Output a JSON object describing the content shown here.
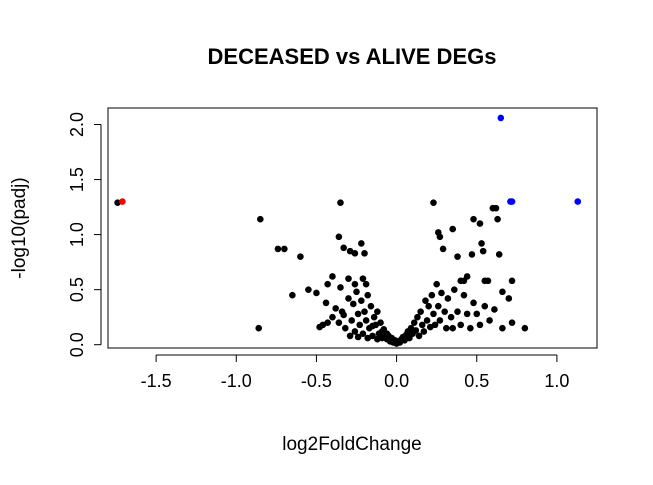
{
  "chart_data": {
    "type": "scatter",
    "title": "DECEASED vs ALIVE DEGs",
    "xlabel": "log2FoldChange",
    "ylabel": "-log10(padj)",
    "xlim": [
      -1.8,
      1.25
    ],
    "ylim": [
      -0.03,
      2.15
    ],
    "xticks": [
      -1.5,
      -1.0,
      -0.5,
      0.0,
      0.5,
      1.0
    ],
    "xtick_labels": [
      "-1.5",
      "-1.0",
      "-0.5",
      "0.0",
      "0.5",
      "1.0"
    ],
    "yticks": [
      0.0,
      0.5,
      1.0,
      1.5,
      2.0
    ],
    "ytick_labels": [
      "0.0",
      "0.5",
      "1.0",
      "1.5",
      "2.0"
    ],
    "grid": false,
    "colors": {
      "base": "#000000",
      "down": "#ff0000",
      "up": "#0000ff"
    },
    "series": [
      {
        "color": "#000000",
        "points": [
          [
            -1.74,
            1.29
          ],
          [
            -0.85,
            1.14
          ],
          [
            -0.74,
            0.87
          ],
          [
            -0.7,
            0.87
          ],
          [
            -0.6,
            0.8
          ],
          [
            -0.35,
            1.29
          ],
          [
            -0.36,
            0.98
          ],
          [
            -0.33,
            0.88
          ],
          [
            -0.29,
            0.85
          ],
          [
            -0.26,
            0.83
          ],
          [
            -0.2,
            0.83
          ],
          [
            -0.22,
            0.92
          ],
          [
            -0.65,
            0.45
          ],
          [
            -0.55,
            0.5
          ],
          [
            -0.5,
            0.47
          ],
          [
            -0.43,
            0.55
          ],
          [
            -0.4,
            0.62
          ],
          [
            -0.35,
            0.52
          ],
          [
            -0.3,
            0.6
          ],
          [
            -0.26,
            0.55
          ],
          [
            -0.21,
            0.6
          ],
          [
            -0.19,
            0.55
          ],
          [
            -0.86,
            0.15
          ],
          [
            -0.48,
            0.16
          ],
          [
            -0.46,
            0.18
          ],
          [
            -0.43,
            0.2
          ],
          [
            -0.4,
            0.25
          ],
          [
            -0.38,
            0.33
          ],
          [
            -0.36,
            0.2
          ],
          [
            -0.34,
            0.3
          ],
          [
            -0.32,
            0.15
          ],
          [
            -0.3,
            0.42
          ],
          [
            -0.28,
            0.22
          ],
          [
            -0.27,
            0.37
          ],
          [
            -0.26,
            0.12
          ],
          [
            -0.25,
            0.48
          ],
          [
            -0.24,
            0.28
          ],
          [
            -0.23,
            0.18
          ],
          [
            -0.22,
            0.4
          ],
          [
            -0.21,
            0.1
          ],
          [
            -0.2,
            0.3
          ],
          [
            -0.19,
            0.22
          ],
          [
            -0.18,
            0.45
          ],
          [
            -0.17,
            0.15
          ],
          [
            -0.16,
            0.35
          ],
          [
            -0.15,
            0.08
          ],
          [
            -0.14,
            0.25
          ],
          [
            -0.13,
            0.18
          ],
          [
            -0.12,
            0.3
          ],
          [
            -0.11,
            0.1
          ],
          [
            -0.1,
            0.2
          ],
          [
            -0.09,
            0.06
          ],
          [
            -0.08,
            0.14
          ],
          [
            -0.07,
            0.1
          ],
          [
            -0.06,
            0.05
          ],
          [
            -0.05,
            0.08
          ],
          [
            -0.04,
            0.03
          ],
          [
            -0.03,
            0.06
          ],
          [
            -0.02,
            0.02
          ],
          [
            -0.01,
            0.04
          ],
          [
            -0.44,
            0.38
          ],
          [
            -0.33,
            0.27
          ],
          [
            -0.29,
            0.08
          ],
          [
            -0.24,
            0.07
          ],
          [
            -0.18,
            0.06
          ],
          [
            -0.15,
            0.17
          ],
          [
            -0.12,
            0.05
          ],
          [
            -0.09,
            0.12
          ],
          [
            -0.06,
            0.1
          ],
          [
            -0.04,
            0.06
          ],
          [
            0.0,
            0.01
          ],
          [
            0.01,
            0.03
          ],
          [
            0.02,
            0.02
          ],
          [
            0.03,
            0.05
          ],
          [
            0.04,
            0.07
          ],
          [
            0.05,
            0.04
          ],
          [
            0.06,
            0.09
          ],
          [
            0.07,
            0.12
          ],
          [
            0.08,
            0.06
          ],
          [
            0.09,
            0.15
          ],
          [
            0.1,
            0.1
          ],
          [
            0.11,
            0.2
          ],
          [
            0.12,
            0.13
          ],
          [
            0.13,
            0.25
          ],
          [
            0.14,
            0.08
          ],
          [
            0.15,
            0.3
          ],
          [
            0.16,
            0.18
          ],
          [
            0.17,
            0.12
          ],
          [
            0.18,
            0.4
          ],
          [
            0.19,
            0.22
          ],
          [
            0.2,
            0.35
          ],
          [
            0.21,
            0.16
          ],
          [
            0.22,
            0.45
          ],
          [
            0.23,
            0.28
          ],
          [
            0.24,
            0.18
          ],
          [
            0.25,
            0.55
          ],
          [
            0.26,
            0.35
          ],
          [
            0.27,
            0.22
          ],
          [
            0.28,
            0.47
          ],
          [
            0.3,
            0.3
          ],
          [
            0.31,
            0.15
          ],
          [
            0.32,
            0.42
          ],
          [
            0.34,
            0.25
          ],
          [
            0.35,
            0.15
          ],
          [
            0.36,
            0.5
          ],
          [
            0.38,
            0.3
          ],
          [
            0.4,
            0.18
          ],
          [
            0.42,
            0.45
          ],
          [
            0.44,
            0.28
          ],
          [
            0.46,
            0.15
          ],
          [
            0.48,
            0.38
          ],
          [
            0.5,
            0.28
          ],
          [
            0.52,
            0.18
          ],
          [
            0.23,
            1.29
          ],
          [
            0.26,
            1.02
          ],
          [
            0.27,
            0.98
          ],
          [
            0.29,
            0.87
          ],
          [
            0.35,
            1.05
          ],
          [
            0.38,
            0.8
          ],
          [
            0.4,
            0.58
          ],
          [
            0.42,
            0.58
          ],
          [
            0.44,
            0.62
          ],
          [
            0.47,
            0.82
          ],
          [
            0.48,
            1.14
          ],
          [
            0.52,
            1.1
          ],
          [
            0.53,
            0.92
          ],
          [
            0.54,
            0.85
          ],
          [
            0.55,
            0.58
          ],
          [
            0.57,
            0.58
          ],
          [
            0.6,
            1.24
          ],
          [
            0.62,
            1.24
          ],
          [
            0.63,
            1.14
          ],
          [
            0.64,
            0.82
          ],
          [
            0.66,
            0.48
          ],
          [
            0.7,
            0.42
          ],
          [
            0.72,
            0.58
          ],
          [
            0.72,
            0.2
          ],
          [
            0.66,
            0.15
          ],
          [
            0.8,
            0.15
          ],
          [
            0.61,
            0.32
          ],
          [
            0.58,
            0.22
          ],
          [
            0.55,
            0.35
          ]
        ]
      },
      {
        "color": "#ff0000",
        "points": [
          [
            -1.71,
            1.3
          ]
        ]
      },
      {
        "color": "#0000ff",
        "points": [
          [
            0.65,
            2.06
          ],
          [
            0.71,
            1.3
          ],
          [
            0.72,
            1.3
          ],
          [
            1.13,
            1.3
          ]
        ]
      }
    ]
  }
}
